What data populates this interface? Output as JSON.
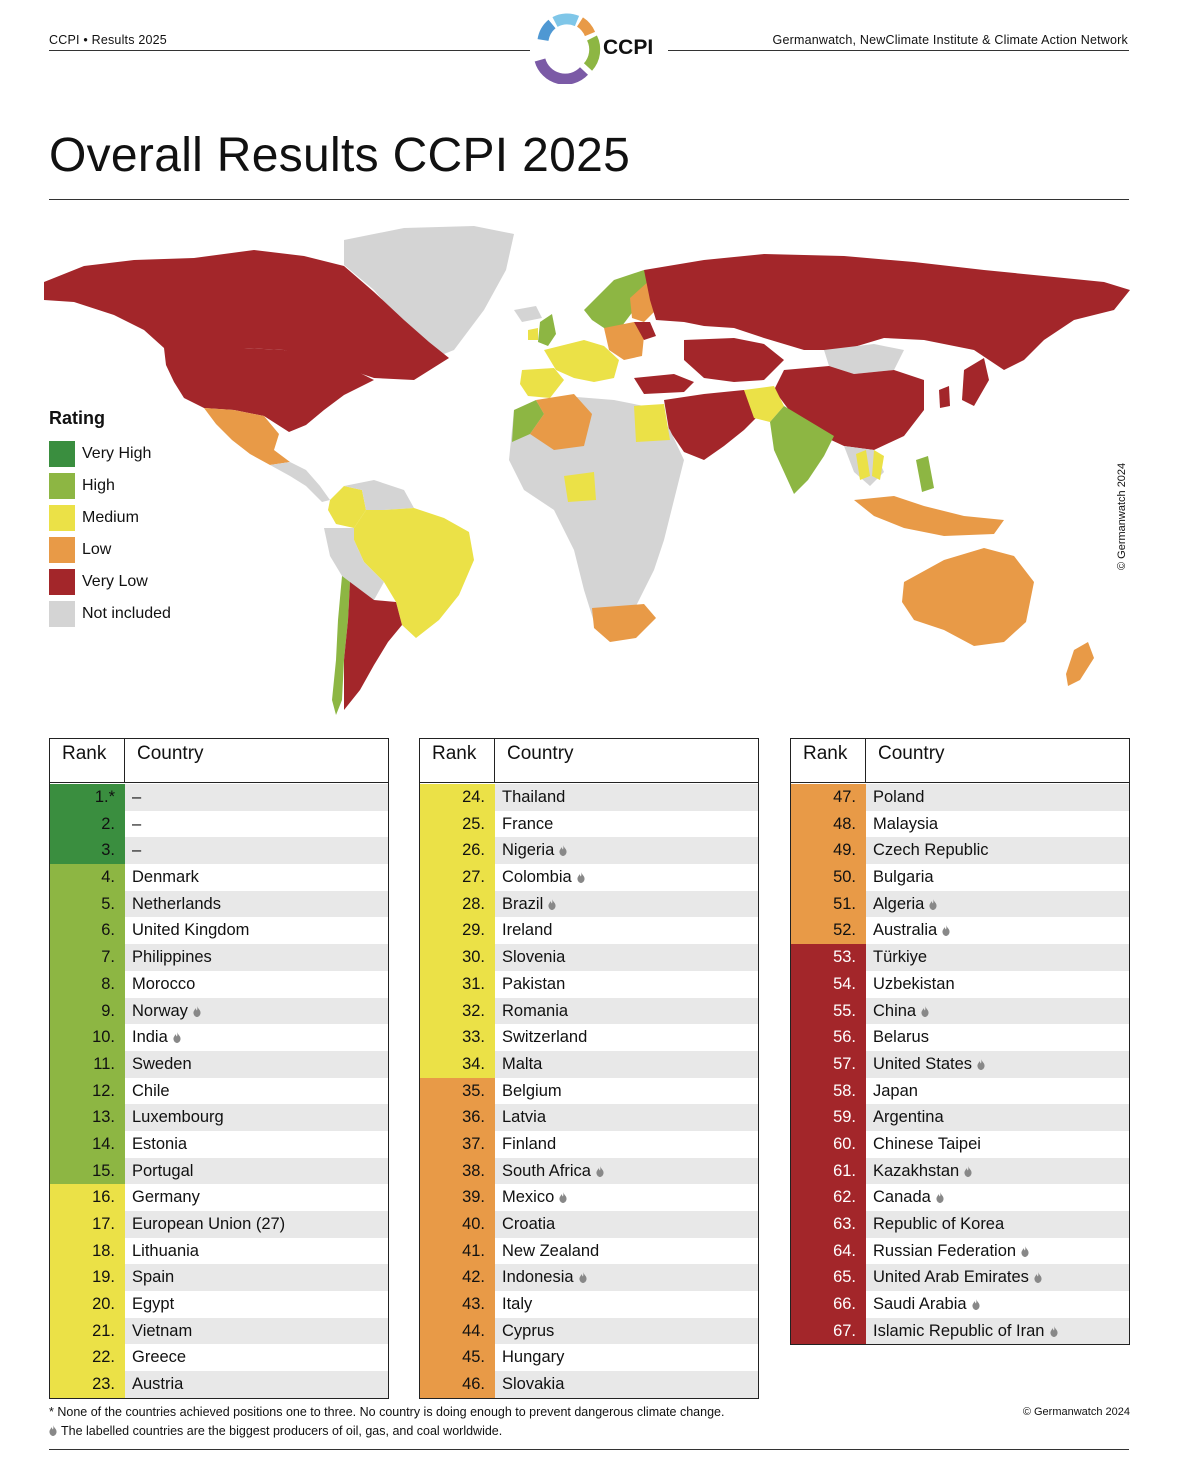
{
  "header": {
    "left": "CCPI • Results 2025",
    "right": "Germanwatch, NewClimate Institute & Climate Action Network",
    "logo_text": "CCPI"
  },
  "title": "Overall Results CCPI 2025",
  "map": {
    "copyright": "© Germanwatch 2024"
  },
  "legend": {
    "title": "Rating",
    "items": [
      {
        "label": "Very High",
        "color": "#3a8e3f"
      },
      {
        "label": "High",
        "color": "#8db643"
      },
      {
        "label": "Medium",
        "color": "#ebe147"
      },
      {
        "label": "Low",
        "color": "#e89a47"
      },
      {
        "label": "Very Low",
        "color": "#a3262a"
      },
      {
        "label": "Not included",
        "color": "#d4d4d4"
      }
    ]
  },
  "table_headers": {
    "rank": "Rank",
    "country": "Country"
  },
  "tables": [
    [
      {
        "rank": "1.*",
        "country": "–",
        "rating": "very_high",
        "flame": false
      },
      {
        "rank": "2.",
        "country": "–",
        "rating": "very_high",
        "flame": false
      },
      {
        "rank": "3.",
        "country": "–",
        "rating": "very_high",
        "flame": false
      },
      {
        "rank": "4.",
        "country": "Denmark",
        "rating": "high",
        "flame": false
      },
      {
        "rank": "5.",
        "country": "Netherlands",
        "rating": "high",
        "flame": false
      },
      {
        "rank": "6.",
        "country": "United Kingdom",
        "rating": "high",
        "flame": false
      },
      {
        "rank": "7.",
        "country": "Philippines",
        "rating": "high",
        "flame": false
      },
      {
        "rank": "8.",
        "country": "Morocco",
        "rating": "high",
        "flame": false
      },
      {
        "rank": "9.",
        "country": "Norway",
        "rating": "high",
        "flame": true
      },
      {
        "rank": "10.",
        "country": "India",
        "rating": "high",
        "flame": true
      },
      {
        "rank": "11.",
        "country": "Sweden",
        "rating": "high",
        "flame": false
      },
      {
        "rank": "12.",
        "country": "Chile",
        "rating": "high",
        "flame": false
      },
      {
        "rank": "13.",
        "country": "Luxembourg",
        "rating": "high",
        "flame": false
      },
      {
        "rank": "14.",
        "country": "Estonia",
        "rating": "high",
        "flame": false
      },
      {
        "rank": "15.",
        "country": "Portugal",
        "rating": "high",
        "flame": false
      },
      {
        "rank": "16.",
        "country": "Germany",
        "rating": "medium",
        "flame": false
      },
      {
        "rank": "17.",
        "country": "European Union (27)",
        "rating": "medium",
        "flame": false
      },
      {
        "rank": "18.",
        "country": "Lithuania",
        "rating": "medium",
        "flame": false
      },
      {
        "rank": "19.",
        "country": "Spain",
        "rating": "medium",
        "flame": false
      },
      {
        "rank": "20.",
        "country": "Egypt",
        "rating": "medium",
        "flame": false
      },
      {
        "rank": "21.",
        "country": "Vietnam",
        "rating": "medium",
        "flame": false
      },
      {
        "rank": "22.",
        "country": "Greece",
        "rating": "medium",
        "flame": false
      },
      {
        "rank": "23.",
        "country": "Austria",
        "rating": "medium",
        "flame": false
      }
    ],
    [
      {
        "rank": "24.",
        "country": "Thailand",
        "rating": "medium",
        "flame": false
      },
      {
        "rank": "25.",
        "country": "France",
        "rating": "medium",
        "flame": false
      },
      {
        "rank": "26.",
        "country": "Nigeria",
        "rating": "medium",
        "flame": true
      },
      {
        "rank": "27.",
        "country": "Colombia",
        "rating": "medium",
        "flame": true
      },
      {
        "rank": "28.",
        "country": "Brazil",
        "rating": "medium",
        "flame": true
      },
      {
        "rank": "29.",
        "country": "Ireland",
        "rating": "medium",
        "flame": false
      },
      {
        "rank": "30.",
        "country": "Slovenia",
        "rating": "medium",
        "flame": false
      },
      {
        "rank": "31.",
        "country": "Pakistan",
        "rating": "medium",
        "flame": false
      },
      {
        "rank": "32.",
        "country": "Romania",
        "rating": "medium",
        "flame": false
      },
      {
        "rank": "33.",
        "country": "Switzerland",
        "rating": "medium",
        "flame": false
      },
      {
        "rank": "34.",
        "country": "Malta",
        "rating": "medium",
        "flame": false
      },
      {
        "rank": "35.",
        "country": "Belgium",
        "rating": "low",
        "flame": false
      },
      {
        "rank": "36.",
        "country": "Latvia",
        "rating": "low",
        "flame": false
      },
      {
        "rank": "37.",
        "country": "Finland",
        "rating": "low",
        "flame": false
      },
      {
        "rank": "38.",
        "country": "South Africa",
        "rating": "low",
        "flame": true
      },
      {
        "rank": "39.",
        "country": "Mexico",
        "rating": "low",
        "flame": true
      },
      {
        "rank": "40.",
        "country": "Croatia",
        "rating": "low",
        "flame": false
      },
      {
        "rank": "41.",
        "country": "New Zealand",
        "rating": "low",
        "flame": false
      },
      {
        "rank": "42.",
        "country": "Indonesia",
        "rating": "low",
        "flame": true
      },
      {
        "rank": "43.",
        "country": "Italy",
        "rating": "low",
        "flame": false
      },
      {
        "rank": "44.",
        "country": "Cyprus",
        "rating": "low",
        "flame": false
      },
      {
        "rank": "45.",
        "country": "Hungary",
        "rating": "low",
        "flame": false
      },
      {
        "rank": "46.",
        "country": "Slovakia",
        "rating": "low",
        "flame": false
      }
    ],
    [
      {
        "rank": "47.",
        "country": "Poland",
        "rating": "low",
        "flame": false
      },
      {
        "rank": "48.",
        "country": "Malaysia",
        "rating": "low",
        "flame": false
      },
      {
        "rank": "49.",
        "country": "Czech Republic",
        "rating": "low",
        "flame": false
      },
      {
        "rank": "50.",
        "country": "Bulgaria",
        "rating": "low",
        "flame": false
      },
      {
        "rank": "51.",
        "country": "Algeria",
        "rating": "low",
        "flame": true
      },
      {
        "rank": "52.",
        "country": "Australia",
        "rating": "low",
        "flame": true
      },
      {
        "rank": "53.",
        "country": "Türkiye",
        "rating": "very_low",
        "flame": false
      },
      {
        "rank": "54.",
        "country": "Uzbekistan",
        "rating": "very_low",
        "flame": false
      },
      {
        "rank": "55.",
        "country": "China",
        "rating": "very_low",
        "flame": true
      },
      {
        "rank": "56.",
        "country": "Belarus",
        "rating": "very_low",
        "flame": false
      },
      {
        "rank": "57.",
        "country": "United States",
        "rating": "very_low",
        "flame": true
      },
      {
        "rank": "58.",
        "country": "Japan",
        "rating": "very_low",
        "flame": false
      },
      {
        "rank": "59.",
        "country": "Argentina",
        "rating": "very_low",
        "flame": false
      },
      {
        "rank": "60.",
        "country": "Chinese Taipei",
        "rating": "very_low",
        "flame": false
      },
      {
        "rank": "61.",
        "country": "Kazakhstan",
        "rating": "very_low",
        "flame": true
      },
      {
        "rank": "62.",
        "country": "Canada",
        "rating": "very_low",
        "flame": true
      },
      {
        "rank": "63.",
        "country": "Republic of Korea",
        "rating": "very_low",
        "flame": false
      },
      {
        "rank": "64.",
        "country": "Russian Federation",
        "rating": "very_low",
        "flame": true
      },
      {
        "rank": "65.",
        "country": "United Arab Emirates",
        "rating": "very_low",
        "flame": true
      },
      {
        "rank": "66.",
        "country": "Saudi Arabia",
        "rating": "very_low",
        "flame": true
      },
      {
        "rank": "67.",
        "country": "Islamic Republic of Iran",
        "rating": "very_low",
        "flame": true
      }
    ]
  ],
  "rating_colors": {
    "very_high": "#3a8e3f",
    "high": "#8db643",
    "medium": "#ebe147",
    "low": "#e89a47",
    "very_low": "#a3262a"
  },
  "footnotes": {
    "star": "None of the countries achieved positions one to three. No country is doing enough to prevent dangerous climate change.",
    "flame": "The labelled countries are the biggest producers of oil, gas, and coal worldwide.",
    "copyright": "© Germanwatch 2024"
  }
}
